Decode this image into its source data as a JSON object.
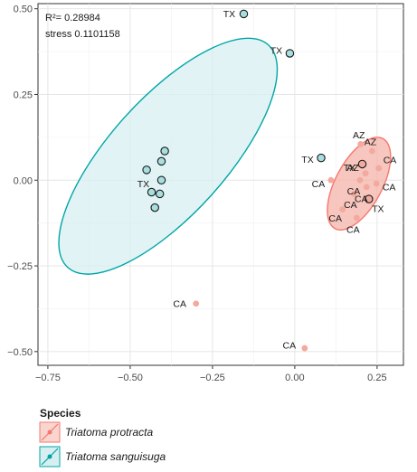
{
  "chart_data": {
    "type": "scatter",
    "xlim": [
      -0.78,
      0.33
    ],
    "ylim": [
      -0.54,
      0.515
    ],
    "x_ticks": [
      -0.75,
      -0.5,
      -0.25,
      0.0,
      0.25
    ],
    "x_tick_labels": [
      "−0.75",
      "−0.50",
      "−0.25",
      "0.00",
      "0.25"
    ],
    "y_ticks": [
      -0.5,
      -0.25,
      0.0,
      0.25,
      0.5
    ],
    "y_tick_labels": [
      "−0.50",
      "−0.25",
      "0.00",
      "0.25",
      "0.50"
    ],
    "grid": true,
    "annotations": [
      "R²= 0.28984",
      "stress 0.1101158"
    ],
    "legend": {
      "title": "Species",
      "position": "bottom-left"
    },
    "series": [
      {
        "name": "Triatoma protracta",
        "color": "#f8766d",
        "fill": "#f4b3a8",
        "points": [
          {
            "x": 0.2,
            "y": 0.105,
            "label": "AZ"
          },
          {
            "x": 0.235,
            "y": 0.085,
            "label": "AZ"
          },
          {
            "x": 0.205,
            "y": 0.047,
            "label": "TX"
          },
          {
            "x": 0.255,
            "y": 0.035,
            "label": "CA"
          },
          {
            "x": 0.215,
            "y": 0.02,
            "label": "AZ"
          },
          {
            "x": 0.11,
            "y": 0.0,
            "label": "CA"
          },
          {
            "x": 0.198,
            "y": 0.0,
            "label": "CA"
          },
          {
            "x": 0.248,
            "y": -0.01,
            "label": "CA"
          },
          {
            "x": 0.218,
            "y": -0.02,
            "label": "CA"
          },
          {
            "x": 0.18,
            "y": -0.04,
            "label": "CA"
          },
          {
            "x": 0.225,
            "y": -0.055,
            "label": "TX"
          },
          {
            "x": 0.145,
            "y": -0.085,
            "label": "CA"
          },
          {
            "x": 0.188,
            "y": -0.11,
            "label": "CA"
          },
          {
            "x": -0.3,
            "y": -0.36,
            "label": "CA"
          },
          {
            "x": 0.03,
            "y": -0.49,
            "label": "CA"
          }
        ],
        "ellipse": {
          "cx": 0.195,
          "cy": -0.01,
          "rx": 0.155,
          "ry": 0.068,
          "angle_deg": -62
        }
      },
      {
        "name": "Triatoma sanguisuga",
        "color": "#00a6a6",
        "fill": "#d7eff0",
        "points": [
          {
            "x": -0.155,
            "y": 0.485,
            "label": "TX"
          },
          {
            "x": -0.015,
            "y": 0.37,
            "label": "TX"
          },
          {
            "x": 0.08,
            "y": 0.065,
            "label": "TX"
          },
          {
            "x": -0.395,
            "y": 0.085,
            "label": ""
          },
          {
            "x": -0.405,
            "y": 0.055,
            "label": ""
          },
          {
            "x": -0.45,
            "y": 0.03,
            "label": ""
          },
          {
            "x": -0.405,
            "y": 0.0,
            "label": "TX"
          },
          {
            "x": -0.435,
            "y": -0.035,
            "label": ""
          },
          {
            "x": -0.41,
            "y": -0.04,
            "label": ""
          },
          {
            "x": -0.425,
            "y": -0.08,
            "label": ""
          }
        ],
        "ellipse": {
          "cx": -0.385,
          "cy": 0.07,
          "rx": 0.455,
          "ry": 0.17,
          "angle_deg": -48
        }
      }
    ]
  }
}
